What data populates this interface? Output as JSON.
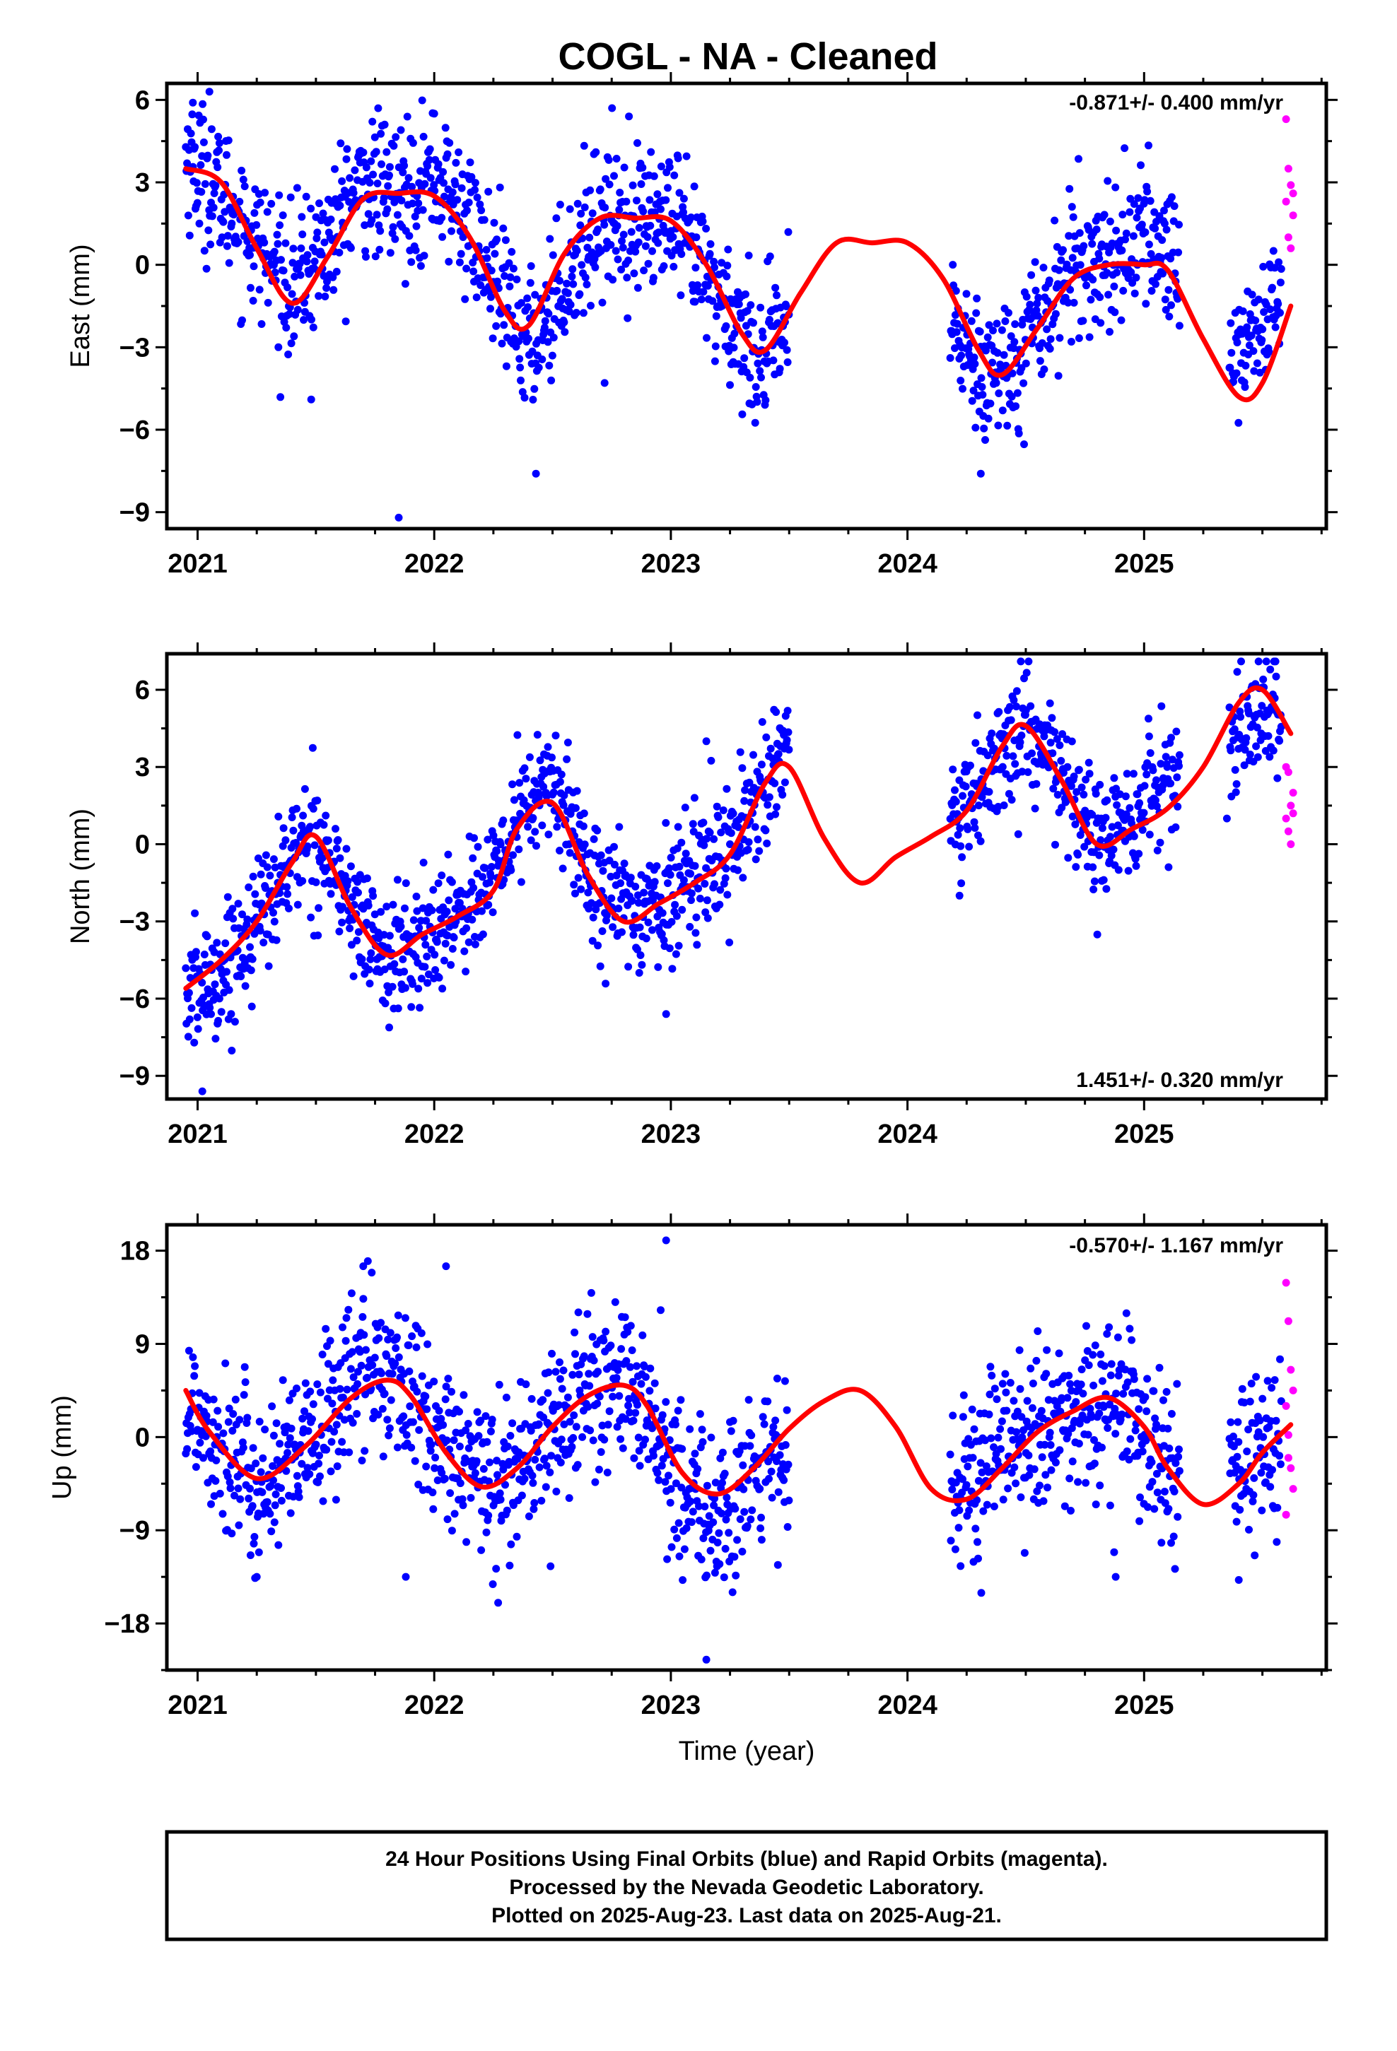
{
  "title": "COGL  - NA - Cleaned",
  "colors": {
    "final_orbits": "#0000ff",
    "rapid_orbits": "#ff00ff",
    "model": "#ff0000",
    "frame": "#000000"
  },
  "chart_data": [
    {
      "type": "scatter",
      "ylabel": "East (mm)",
      "xlabel": "",
      "xlim": [
        2020.87,
        2025.77
      ],
      "ylim": [
        -9.6,
        6.6
      ],
      "x_ticks": [
        2021,
        2022,
        2023,
        2024,
        2025
      ],
      "y_ticks": [
        -9,
        -6,
        -3,
        0,
        3,
        6
      ],
      "rate_label": "-0.871+/- 0.400 mm/yr",
      "rate_position": "top-right",
      "data_gap": [
        2023.5,
        2024.18
      ],
      "model_curve": {
        "name": "",
        "color": "#ff0000",
        "x": [
          2020.95,
          2021.1,
          2021.25,
          2021.4,
          2021.55,
          2021.7,
          2021.85,
          2022.0,
          2022.15,
          2022.3,
          2022.4,
          2022.55,
          2022.7,
          2022.85,
          2023.0,
          2023.15,
          2023.3,
          2023.4,
          2023.55,
          2023.7,
          2023.85,
          2024.0,
          2024.15,
          2024.3,
          2024.4,
          2024.55,
          2024.7,
          2024.85,
          2025.0,
          2025.1,
          2025.25,
          2025.4,
          2025.5,
          2025.62
        ],
        "y": [
          3.5,
          3.0,
          0.6,
          -1.4,
          0.3,
          2.4,
          2.6,
          2.5,
          1.0,
          -1.7,
          -2.2,
          0.4,
          1.7,
          1.7,
          1.6,
          0.0,
          -2.5,
          -3.1,
          -1.0,
          0.8,
          0.8,
          0.8,
          -0.5,
          -3.1,
          -4.0,
          -2.3,
          -0.5,
          0.0,
          0.0,
          -0.2,
          -2.7,
          -4.8,
          -4.3,
          -1.5
        ]
      },
      "scatter_profile": {
        "x": [
          2020.95,
          2021.1,
          2021.25,
          2021.4,
          2021.55,
          2021.7,
          2021.85,
          2022.0,
          2022.15,
          2022.3,
          2022.4,
          2022.55,
          2022.7,
          2022.85,
          2023.0,
          2023.15,
          2023.3,
          2023.4,
          2023.5,
          2024.2,
          2024.3,
          2024.4,
          2024.55,
          2024.7,
          2024.85,
          2025.0,
          2025.1,
          2025.38,
          2025.5,
          2025.58
        ],
        "y": [
          4.0,
          2.5,
          0.8,
          -0.8,
          0.8,
          3.0,
          2.5,
          3.2,
          1.5,
          -1.5,
          -3.0,
          -0.5,
          1.8,
          1.8,
          1.5,
          -0.5,
          -2.5,
          -3.5,
          -2.0,
          -2.5,
          -3.5,
          -4.0,
          -2.0,
          0.0,
          0.3,
          1.0,
          0.5,
          -3.2,
          -2.2,
          -1.0
        ],
        "spread": 1.3
      },
      "scatter_outliers": [
        [
          2021.85,
          -9.2
        ],
        [
          2022.43,
          -7.6
        ],
        [
          2024.31,
          -7.6
        ],
        [
          2021.48,
          -4.9
        ],
        [
          2022.72,
          -4.3
        ],
        [
          2021.05,
          6.3
        ],
        [
          2020.98,
          5.9
        ],
        [
          2022.0,
          5.5
        ]
      ],
      "rapid_points": {
        "x": [
          2025.6,
          2025.61,
          2025.62,
          2025.63,
          2025.6,
          2025.61,
          2025.62,
          2025.63
        ],
        "y": [
          5.3,
          3.5,
          2.9,
          2.6,
          2.3,
          1.0,
          0.6,
          1.8
        ]
      }
    },
    {
      "type": "scatter",
      "ylabel": "North (mm)",
      "xlabel": "",
      "xlim": [
        2020.87,
        2025.77
      ],
      "ylim": [
        -9.9,
        7.4
      ],
      "x_ticks": [
        2021,
        2022,
        2023,
        2024,
        2025
      ],
      "y_ticks": [
        -9,
        -6,
        -3,
        0,
        3,
        6
      ],
      "rate_label": "1.451+/- 0.320 mm/yr",
      "rate_position": "bottom-right",
      "data_gap": [
        2023.5,
        2024.18
      ],
      "model_curve": {
        "name": "",
        "color": "#ff0000",
        "x": [
          2020.95,
          2021.1,
          2021.25,
          2021.4,
          2021.5,
          2021.65,
          2021.8,
          2021.95,
          2022.1,
          2022.25,
          2022.35,
          2022.5,
          2022.65,
          2022.8,
          2022.95,
          2023.1,
          2023.25,
          2023.4,
          2023.5,
          2023.65,
          2023.8,
          2023.95,
          2024.1,
          2024.25,
          2024.4,
          2024.5,
          2024.65,
          2024.8,
          2024.95,
          2025.1,
          2025.25,
          2025.4,
          2025.5,
          2025.62
        ],
        "y": [
          -5.6,
          -4.5,
          -3.0,
          -0.7,
          0.3,
          -2.5,
          -4.3,
          -3.5,
          -2.8,
          -1.8,
          0.6,
          1.6,
          -1.2,
          -3.0,
          -2.3,
          -1.5,
          -0.4,
          2.4,
          3.0,
          0.2,
          -1.5,
          -0.5,
          0.3,
          1.3,
          3.8,
          4.6,
          2.5,
          0.0,
          0.6,
          1.4,
          3.0,
          5.5,
          6.0,
          4.3
        ]
      },
      "scatter_profile": {
        "x": [
          2020.95,
          2021.1,
          2021.25,
          2021.4,
          2021.5,
          2021.65,
          2021.8,
          2021.95,
          2022.1,
          2022.25,
          2022.35,
          2022.5,
          2022.65,
          2022.8,
          2022.95,
          2023.1,
          2023.25,
          2023.4,
          2023.5,
          2024.2,
          2024.3,
          2024.4,
          2024.5,
          2024.65,
          2024.8,
          2024.95,
          2025.05,
          2025.38,
          2025.5,
          2025.58
        ],
        "y": [
          -6.0,
          -5.0,
          -3.0,
          -0.5,
          0.5,
          -2.5,
          -4.5,
          -4.0,
          -2.5,
          -1.5,
          1.0,
          2.5,
          -1.0,
          -2.5,
          -2.5,
          -1.0,
          0.0,
          2.5,
          3.5,
          0.5,
          2.0,
          3.5,
          4.5,
          2.5,
          0.0,
          0.8,
          2.0,
          4.5,
          5.0,
          5.0
        ],
        "spread": 1.2
      },
      "scatter_outliers": [
        [
          2021.02,
          -9.6
        ],
        [
          2022.98,
          -6.6
        ],
        [
          2023.1,
          1.8
        ],
        [
          2023.15,
          4.0
        ],
        [
          2024.22,
          -2.0
        ],
        [
          2025.35,
          1.0
        ]
      ],
      "rapid_points": {
        "x": [
          2025.6,
          2025.61,
          2025.62,
          2025.63,
          2025.6,
          2025.61,
          2025.62,
          2025.63
        ],
        "y": [
          3.0,
          2.8,
          1.5,
          1.2,
          1.0,
          0.5,
          0.0,
          2.0
        ]
      }
    },
    {
      "type": "scatter",
      "ylabel": "Up (mm)",
      "xlabel": "Time (year)",
      "xlim": [
        2020.87,
        2025.77
      ],
      "ylim": [
        -22.5,
        20.5
      ],
      "x_ticks": [
        2021,
        2022,
        2023,
        2024,
        2025
      ],
      "y_ticks": [
        -18,
        -9,
        0,
        9,
        18
      ],
      "rate_label": "-0.570+/- 1.167 mm/yr",
      "rate_position": "top-right",
      "data_gap": [
        2023.5,
        2024.18
      ],
      "model_curve": {
        "name": "",
        "color": "#ff0000",
        "x": [
          2020.95,
          2021.05,
          2021.25,
          2021.45,
          2021.65,
          2021.8,
          2021.9,
          2022.05,
          2022.2,
          2022.35,
          2022.5,
          2022.65,
          2022.8,
          2022.9,
          2023.05,
          2023.2,
          2023.35,
          2023.5,
          2023.65,
          2023.8,
          2023.95,
          2024.1,
          2024.25,
          2024.4,
          2024.55,
          2024.7,
          2024.85,
          2025.0,
          2025.1,
          2025.25,
          2025.4,
          2025.5,
          2025.62
        ],
        "y": [
          4.5,
          0.5,
          -4.0,
          -1.0,
          3.8,
          5.5,
          4.0,
          -1.5,
          -4.8,
          -3.0,
          1.0,
          4.0,
          5.0,
          3.0,
          -3.5,
          -5.5,
          -3.0,
          0.8,
          3.5,
          4.5,
          1.0,
          -5.0,
          -6.0,
          -3.0,
          0.5,
          2.5,
          3.8,
          1.0,
          -3.0,
          -6.5,
          -4.5,
          -1.5,
          1.2
        ]
      },
      "scatter_profile": {
        "x": [
          2020.95,
          2021.05,
          2021.25,
          2021.45,
          2021.65,
          2021.8,
          2021.9,
          2022.05,
          2022.2,
          2022.35,
          2022.5,
          2022.65,
          2022.8,
          2022.9,
          2023.05,
          2023.2,
          2023.35,
          2023.5,
          2024.2,
          2024.3,
          2024.4,
          2024.55,
          2024.7,
          2024.85,
          2025.0,
          2025.08,
          2025.38,
          2025.5,
          2025.58
        ],
        "y": [
          3.0,
          1.0,
          -5.0,
          -2.0,
          6.0,
          7.0,
          4.0,
          -2.0,
          -4.0,
          -3.0,
          1.0,
          5.0,
          5.0,
          2.0,
          -5.0,
          -8.0,
          -4.0,
          -1.0,
          -6.0,
          -4.0,
          -1.0,
          0.0,
          2.0,
          3.0,
          1.0,
          -3.0,
          -4.0,
          -2.0,
          -2.0
        ],
        "spread": 4.0
      },
      "scatter_outliers": [
        [
          2022.98,
          19.0
        ],
        [
          2023.15,
          -21.5
        ],
        [
          2021.88,
          -13.5
        ],
        [
          2022.27,
          -16.0
        ],
        [
          2021.25,
          -13.5
        ],
        [
          2024.88,
          -13.5
        ],
        [
          2025.4,
          -13.8
        ],
        [
          2022.05,
          16.5
        ],
        [
          2021.7,
          16.5
        ]
      ],
      "rapid_points": {
        "x": [
          2025.6,
          2025.61,
          2025.62,
          2025.63,
          2025.6,
          2025.61,
          2025.62,
          2025.63,
          2025.6,
          2025.61
        ],
        "y": [
          14.9,
          11.2,
          6.5,
          4.5,
          3.0,
          0.2,
          -3.0,
          -5.0,
          -7.5,
          -2.0
        ]
      }
    }
  ],
  "caption": {
    "line1": "24 Hour Positions Using Final Orbits (blue) and Rapid Orbits (magenta).",
    "line2": "Processed by the Nevada Geodetic Laboratory.",
    "line3": "Plotted on 2025-Aug-23. Last data on 2025-Aug-21."
  }
}
